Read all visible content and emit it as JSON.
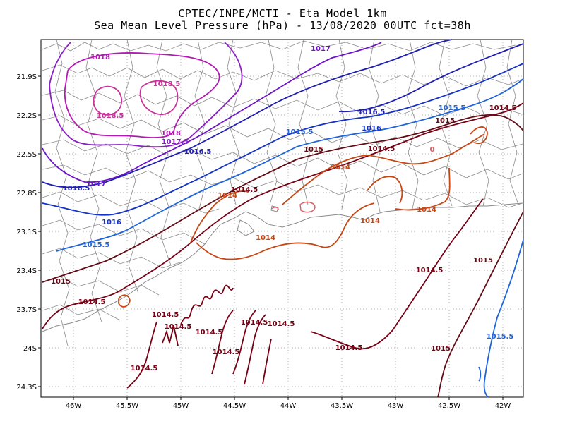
{
  "header": {
    "title_line1": "CPTEC/INPE/MCTI -  Eta Model 1km",
    "title_line2": "Sea Mean Level Pressure (hPa) - 13/08/2020 00UTC fct=38h"
  },
  "axes": {
    "lat_labels": [
      "21.9S",
      "22.2S",
      "22.5S",
      "22.8S",
      "23.1S",
      "23.4S",
      "23.7S",
      "24S",
      "24.3S"
    ],
    "lon_labels": [
      "46W",
      "45.5W",
      "45W",
      "44.5W",
      "44W",
      "43.5W",
      "43W",
      "42.5W",
      "42W"
    ]
  },
  "colors": {
    "c1018_5": "#c8329a",
    "c1018": "#b419b4",
    "c1017_5": "#8c1ec8",
    "c1017": "#6e14c8",
    "c1016_5": "#1e1eb4",
    "c1016": "#1432c8",
    "c1015_5": "#1e64dc",
    "c1015": "#640a14",
    "c1014_5": "#780014",
    "c1014": "#c84614",
    "c0": "#e65a64",
    "border": "#8a8a8a",
    "coast": "#8a8a8a"
  },
  "contour_labels": [
    {
      "text": "1018",
      "color": "c1018"
    },
    {
      "text": "1018.5",
      "color": "c1018_5"
    },
    {
      "text": "1018.5",
      "color": "c1018_5"
    },
    {
      "text": "1018",
      "color": "c1018"
    },
    {
      "text": "1017.5",
      "color": "c1017_5"
    },
    {
      "text": "1017",
      "color": "c1017"
    },
    {
      "text": "1017",
      "color": "c1017"
    },
    {
      "text": "1016.5",
      "color": "c1016_5"
    },
    {
      "text": "1016.5",
      "color": "c1016_5"
    },
    {
      "text": "1016.5",
      "color": "c1016_5"
    },
    {
      "text": "1016",
      "color": "c1016"
    },
    {
      "text": "1016",
      "color": "c1016"
    },
    {
      "text": "1015.5",
      "color": "c1015_5"
    },
    {
      "text": "1015.5",
      "color": "c1015_5"
    },
    {
      "text": "1015.5",
      "color": "c1015_5"
    },
    {
      "text": "1015.5",
      "color": "c1015_5"
    },
    {
      "text": "1015",
      "color": "c1015"
    },
    {
      "text": "1015",
      "color": "c1015"
    },
    {
      "text": "1015",
      "color": "c1015"
    },
    {
      "text": "1015",
      "color": "c1015"
    },
    {
      "text": "1015",
      "color": "c1015"
    },
    {
      "text": "1014.5",
      "color": "c1014_5"
    },
    {
      "text": "1014.5",
      "color": "c1014_5"
    },
    {
      "text": "1014.5",
      "color": "c1014_5"
    },
    {
      "text": "1014.5",
      "color": "c1014_5"
    },
    {
      "text": "1014.5",
      "color": "c1014_5"
    },
    {
      "text": "1014.5",
      "color": "c1014_5"
    },
    {
      "text": "1014.5",
      "color": "c1014_5"
    },
    {
      "text": "1014.5",
      "color": "c1014_5"
    },
    {
      "text": "1014.5",
      "color": "c1014_5"
    },
    {
      "text": "1014.5",
      "color": "c1014_5"
    },
    {
      "text": "1014.5",
      "color": "c1014_5"
    },
    {
      "text": "1014.5",
      "color": "c1014_5"
    },
    {
      "text": "1014.5",
      "color": "c1014_5"
    },
    {
      "text": "1014",
      "color": "c1014"
    },
    {
      "text": "1014",
      "color": "c1014"
    },
    {
      "text": "1014",
      "color": "c1014"
    },
    {
      "text": "1014",
      "color": "c1014"
    },
    {
      "text": "1014",
      "color": "c1014"
    },
    {
      "text": "0",
      "color": "c0"
    }
  ]
}
